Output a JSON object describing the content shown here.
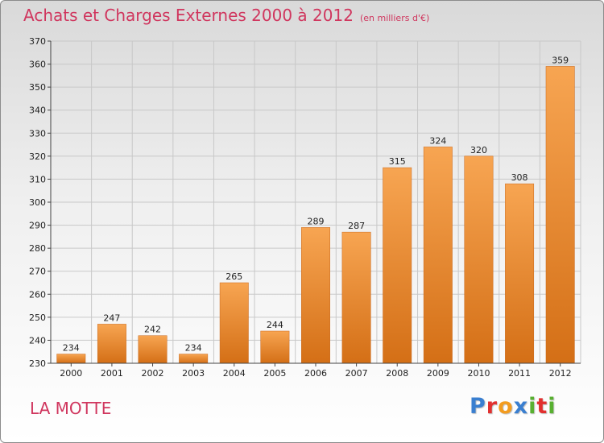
{
  "header": {
    "title": "Achats et Charges Externes 2000 à 2012",
    "subtitle": "(en milliers d'€)"
  },
  "footer": {
    "place": "LA MOTTE",
    "logo": [
      {
        "char": "P",
        "color": "#3a7fd0"
      },
      {
        "char": "r",
        "color": "#e2302f"
      },
      {
        "char": "o",
        "color": "#f39c1f"
      },
      {
        "char": "x",
        "color": "#3a7fd0"
      },
      {
        "char": "i",
        "color": "#58b030"
      },
      {
        "char": "t",
        "color": "#e2302f"
      },
      {
        "char": "i",
        "color": "#58b030"
      }
    ]
  },
  "colors": {
    "bar_top": "#f7a552",
    "bar_bottom": "#d46f16",
    "grid": "#c8c8c8",
    "axis": "#444444",
    "accent": "#d0365e"
  },
  "chart_data": {
    "type": "bar",
    "title": "Achats et Charges Externes 2000 à 2012",
    "subtitle": "(en milliers d'€)",
    "categories": [
      "2000",
      "2001",
      "2002",
      "2003",
      "2004",
      "2005",
      "2006",
      "2007",
      "2008",
      "2009",
      "2010",
      "2011",
      "2012"
    ],
    "values": [
      234,
      247,
      242,
      234,
      265,
      244,
      289,
      287,
      315,
      324,
      320,
      308,
      359
    ],
    "ylim": [
      230,
      370
    ],
    "yticks": [
      230,
      240,
      250,
      260,
      270,
      280,
      290,
      300,
      310,
      320,
      330,
      340,
      350,
      360,
      370
    ],
    "grid": true,
    "data_labels": true
  }
}
